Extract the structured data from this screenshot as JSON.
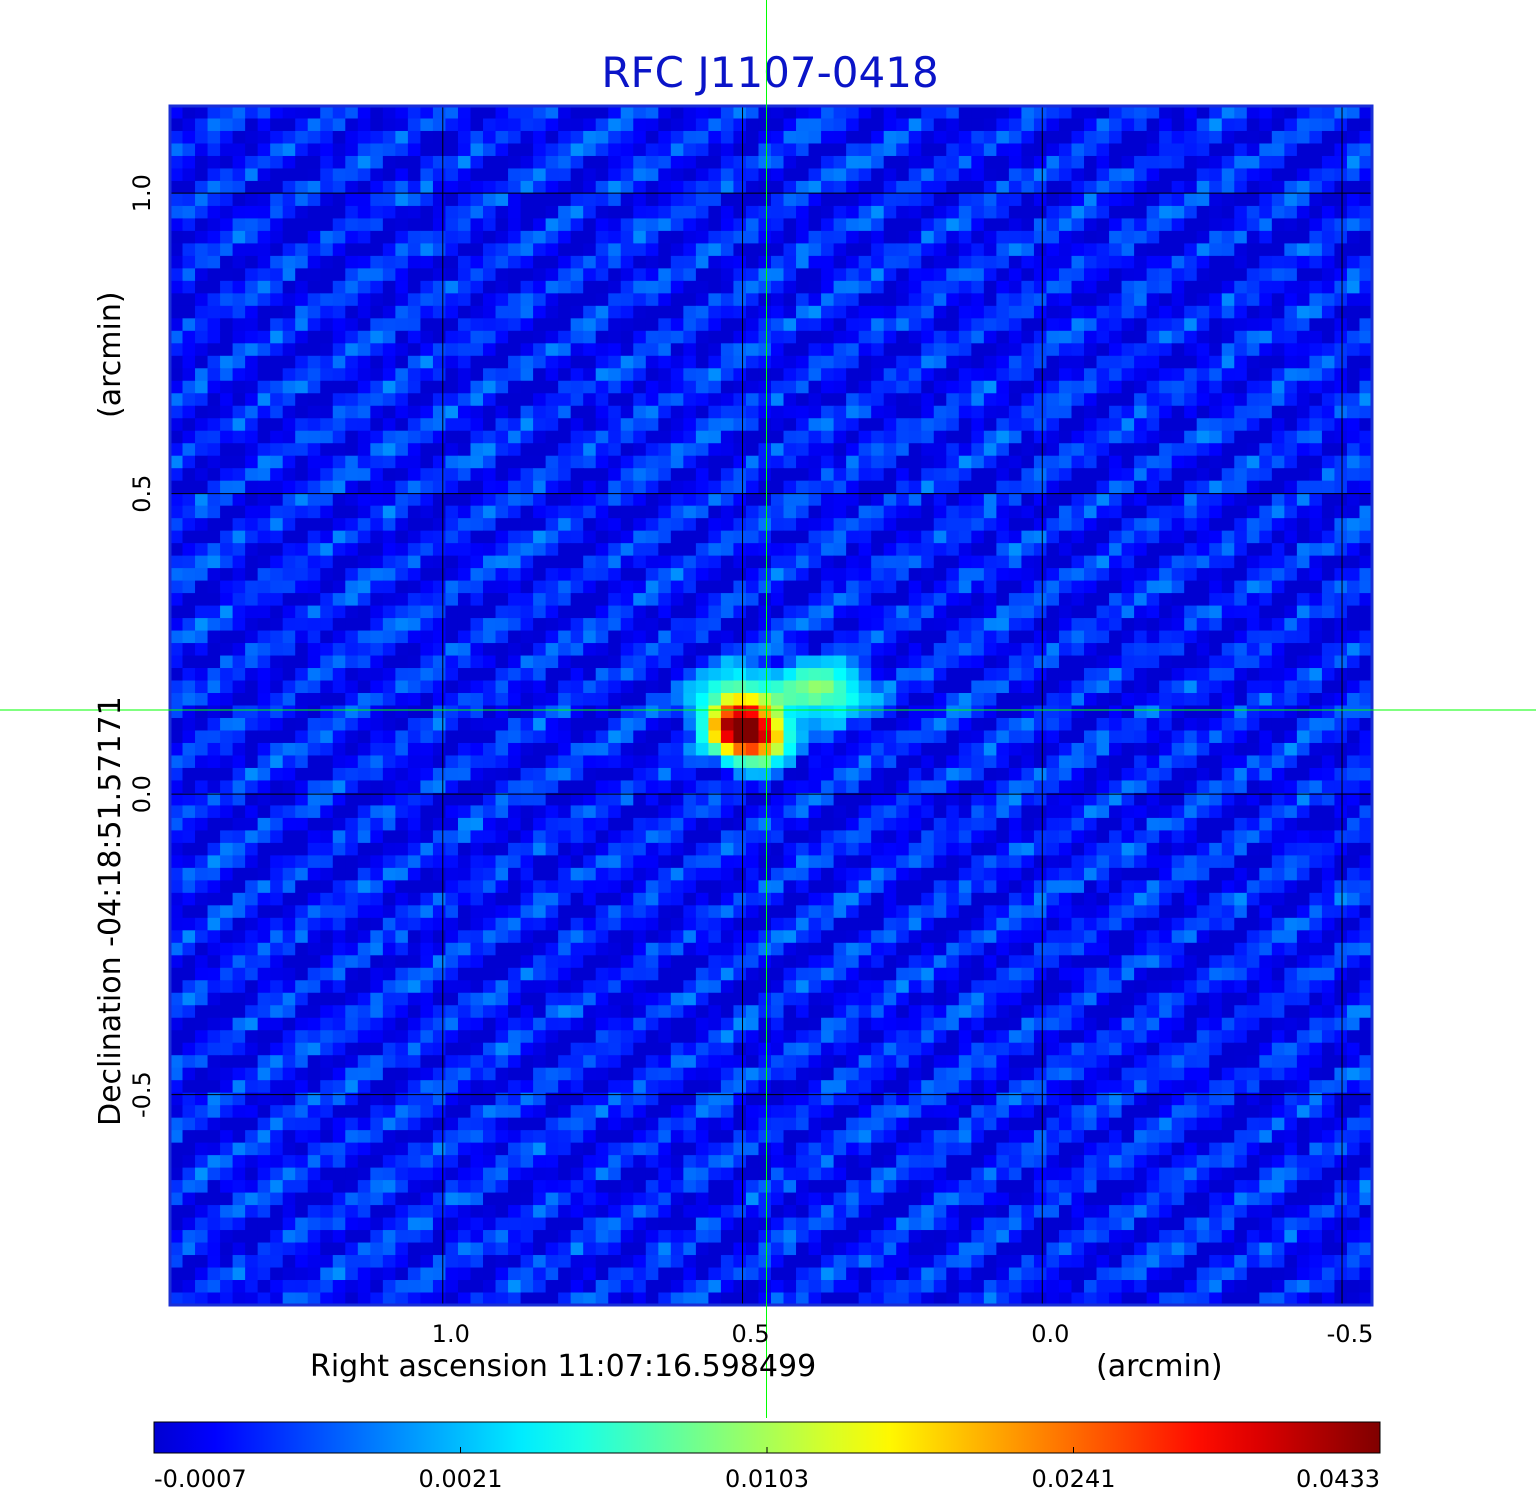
{
  "chart_data": {
    "type": "heatmap",
    "title": "RFC J1107-0418",
    "xlabel": "Right ascension  11:07:16.598499",
    "xunit": "(arcmin)",
    "ylabel": "Declination  -04:18:51.57171",
    "yunit": "(arcmin)",
    "x_ticks": [
      "1.0",
      "0.5",
      "0.0",
      "-0.5"
    ],
    "y_ticks": [
      "1.0",
      "0.5",
      "0.0",
      "-0.5"
    ],
    "x_tick_values": [
      1.0,
      0.5,
      0.0,
      -0.5
    ],
    "y_tick_values": [
      1.0,
      0.5,
      0.0,
      -0.5
    ],
    "xlim": [
      1.455,
      -0.55
    ],
    "ylim": [
      -0.85,
      1.145
    ],
    "x_reversed": true,
    "grid": true,
    "crosshair": {
      "x": 0.46,
      "y": 0.14,
      "color": "#00ff00"
    },
    "colormap": "jet",
    "colorbar": {
      "ticks": [
        "-0.0007",
        "0.0021",
        "0.0103",
        "0.0241",
        "0.0433"
      ],
      "tick_values": [
        -0.0007,
        0.0021,
        0.0103,
        0.0241,
        0.0433
      ],
      "placement": "bottom"
    },
    "background_level": 0.0,
    "sources": [
      {
        "x_arcmin": 0.505,
        "y_arcmin": 0.11,
        "peak": 0.0433,
        "sigma_x": 0.03,
        "sigma_y": 0.026
      },
      {
        "x_arcmin": 0.47,
        "y_arcmin": 0.095,
        "peak": 0.022,
        "sigma_x": 0.028,
        "sigma_y": 0.024
      },
      {
        "x_arcmin": 0.5,
        "y_arcmin": 0.155,
        "peak": 0.009,
        "sigma_x": 0.045,
        "sigma_y": 0.03
      },
      {
        "x_arcmin": 0.37,
        "y_arcmin": 0.175,
        "peak": 0.0095,
        "sigma_x": 0.045,
        "sigma_y": 0.028
      }
    ],
    "noise_amplitude": 0.0016
  }
}
